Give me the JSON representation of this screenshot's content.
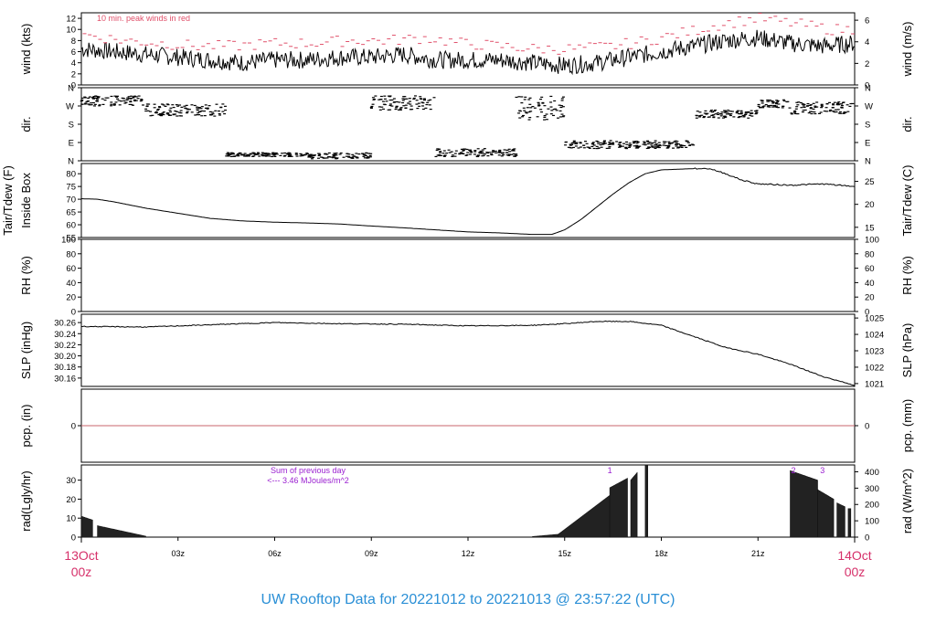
{
  "title": "UW Rooftop Data for 20221012  to  20221013 @ 23:57:22  (UTC)",
  "x_axis": {
    "start": {
      "line1": "13Oct",
      "line2": "00z"
    },
    "end": {
      "line1": "14Oct",
      "line2": "00z"
    },
    "ticks": [
      {
        "hour": 3,
        "label": "03z"
      },
      {
        "hour": 6,
        "label": "06z"
      },
      {
        "hour": 9,
        "label": "09z"
      },
      {
        "hour": 12,
        "label": "12z"
      },
      {
        "hour": 15,
        "label": "15z"
      },
      {
        "hour": 18,
        "label": "18z"
      },
      {
        "hour": 21,
        "label": "21z"
      }
    ]
  },
  "colors": {
    "title": "#2a8fd6",
    "date_labels": "#d6306a",
    "peak_winds": "#e0506a",
    "precip_line": "#c8646e",
    "rad_annotation": "#9a1fd0"
  },
  "chart_data": [
    {
      "id": "wind",
      "type": "line",
      "left_label": "wind (kts)",
      "right_label": "wind (m/s)",
      "left_ticks": [
        0,
        2,
        4,
        6,
        8,
        10,
        12
      ],
      "right_ticks": [
        0,
        2,
        4,
        6
      ],
      "ylim": [
        0,
        13
      ],
      "annotation": "10 min. peak winds in red",
      "series": [
        {
          "hours": [
            0,
            1,
            2,
            3,
            4,
            5,
            6,
            7,
            8,
            9,
            10,
            11,
            12,
            13,
            14,
            15,
            16,
            17,
            18,
            19,
            20,
            21,
            22,
            23,
            24
          ],
          "values": [
            6.5,
            6,
            5.5,
            5,
            4.5,
            4,
            4.5,
            4.5,
            5,
            5,
            5.5,
            4.5,
            4.5,
            4.5,
            4,
            3.5,
            4,
            5,
            6,
            7,
            8,
            8.5,
            7.5,
            7,
            7.5
          ]
        }
      ],
      "peak_hours": [
        0.2,
        1.3,
        2.5,
        3.6,
        4.7,
        5.9,
        7.1,
        8.3,
        9.5,
        10.7,
        11.8,
        13,
        14.1,
        15.3,
        16.5,
        17.6,
        18.8,
        19.9,
        21,
        22.2,
        23.3
      ],
      "peak_values": [
        9,
        8,
        7.5,
        7,
        7,
        7.5,
        7.5,
        8,
        8,
        8.5,
        7.5,
        7,
        6.5,
        6.5,
        7,
        8,
        9.5,
        11,
        12,
        11,
        10
      ]
    },
    {
      "id": "dir",
      "type": "scatter",
      "left_label": "dir.",
      "left_ticks": [
        "N",
        "W",
        "S",
        "E",
        "N"
      ],
      "right_ticks": [
        "N",
        "W",
        "S",
        "E",
        "N"
      ],
      "ylim": [
        0,
        360
      ],
      "segments": [
        {
          "h0": 0,
          "h1": 2,
          "from": 270,
          "to": 320
        },
        {
          "h0": 2,
          "h1": 4.5,
          "from": 220,
          "to": 280
        },
        {
          "h0": 4.5,
          "h1": 7,
          "from": 20,
          "to": 40
        },
        {
          "h0": 7,
          "h1": 9,
          "from": 10,
          "to": 40
        },
        {
          "h0": 9,
          "h1": 11,
          "from": 250,
          "to": 320
        },
        {
          "h0": 11,
          "h1": 13.5,
          "from": 20,
          "to": 60
        },
        {
          "h0": 13.5,
          "h1": 15,
          "from": 200,
          "to": 320
        },
        {
          "h0": 15,
          "h1": 19,
          "from": 60,
          "to": 100
        },
        {
          "h0": 19,
          "h1": 21,
          "from": 210,
          "to": 250
        },
        {
          "h0": 21,
          "h1": 22,
          "from": 260,
          "to": 300
        },
        {
          "h0": 22,
          "h1": 24,
          "from": 230,
          "to": 290
        }
      ]
    },
    {
      "id": "temp",
      "type": "line",
      "left_label_1": "Tair/Tdew (F)",
      "left_label_2": "Inside Box",
      "right_label": "Tair/Tdew (C)",
      "left_ticks": [
        55,
        60,
        65,
        70,
        75,
        80
      ],
      "right_ticks": [
        15,
        20,
        25
      ],
      "ylim": [
        55,
        84
      ],
      "series": [
        {
          "hours": [
            0,
            0.5,
            1,
            2,
            3,
            4,
            5,
            6,
            7,
            8,
            9,
            10,
            11,
            12,
            13,
            14,
            14.6,
            15,
            15.5,
            16,
            16.5,
            17,
            17.5,
            18,
            19,
            19.5,
            20,
            20.5,
            21,
            22,
            23,
            24
          ],
          "values": [
            70.2,
            70,
            69,
            66.5,
            64.5,
            62.5,
            61.5,
            61,
            60.7,
            60.3,
            59.5,
            58.8,
            58,
            57.2,
            56.8,
            56.2,
            56.2,
            58,
            62,
            67,
            72,
            76.5,
            80,
            81.5,
            82,
            82,
            80,
            77.5,
            76,
            75.5,
            76,
            75
          ]
        }
      ]
    },
    {
      "id": "rh",
      "type": "line",
      "left_label": "RH (%)",
      "right_label": "RH (%)",
      "left_ticks": [
        0,
        20,
        40,
        60,
        80,
        100
      ],
      "right_ticks": [
        0,
        20,
        40,
        60,
        80,
        100
      ],
      "ylim": [
        0,
        100
      ],
      "series": []
    },
    {
      "id": "slp",
      "type": "line",
      "left_label": "SLP (inHg)",
      "right_label": "SLP (hPa)",
      "left_ticks": [
        30.16,
        30.18,
        30.2,
        30.22,
        30.24,
        30.26
      ],
      "right_ticks": [
        1021,
        1022,
        1023,
        1024,
        1025
      ],
      "ylim": [
        30.145,
        30.275
      ],
      "series": [
        {
          "hours": [
            0,
            2,
            4,
            6,
            8,
            10,
            12,
            14,
            15,
            16,
            17,
            18,
            19,
            20,
            21,
            22,
            23,
            24
          ],
          "values": [
            30.253,
            30.252,
            30.256,
            30.26,
            30.258,
            30.257,
            30.254,
            30.255,
            30.258,
            30.262,
            30.262,
            30.255,
            30.235,
            30.215,
            30.203,
            30.185,
            30.163,
            30.147
          ]
        }
      ]
    },
    {
      "id": "pcp",
      "type": "line",
      "left_label": "pcp. (in)",
      "right_label": "pcp. (mm)",
      "left_ticks": [
        0
      ],
      "right_ticks": [
        0
      ],
      "ylim": [
        -1,
        1
      ],
      "series": [
        {
          "hours": [
            0,
            24
          ],
          "values": [
            0,
            0
          ]
        }
      ]
    },
    {
      "id": "rad",
      "type": "area",
      "left_label": "rad(Lgly/hr)",
      "right_label": "rad (W/m^2)",
      "left_ticks": [
        0,
        10,
        20,
        30
      ],
      "right_ticks": [
        0,
        100,
        200,
        300,
        400
      ],
      "ylim": [
        0,
        38
      ],
      "annotation_line1": "Sum of previous day",
      "annotation_line2": "<--- 3.46 MJoules/m^2",
      "markers": [
        {
          "hour": 16.4,
          "label": "1"
        },
        {
          "hour": 22.1,
          "label": "2"
        },
        {
          "hour": 23.0,
          "label": "3"
        }
      ],
      "bars": [
        {
          "h0": 0,
          "h1": 0.35,
          "from": 11,
          "to": 9
        },
        {
          "h0": 0.5,
          "h1": 2.0,
          "from": 6,
          "to": 0.5
        },
        {
          "h0": 14.0,
          "h1": 14.8,
          "from": 0.3,
          "to": 1.5
        },
        {
          "h0": 14.8,
          "h1": 16.4,
          "from": 1.5,
          "to": 22
        },
        {
          "h0": 16.4,
          "h1": 16.95,
          "from": 26,
          "to": 31
        },
        {
          "h0": 17.05,
          "h1": 17.25,
          "from": 30,
          "to": 34
        },
        {
          "h0": 17.5,
          "h1": 17.58,
          "from": 38,
          "to": 38
        },
        {
          "h0": 22.0,
          "h1": 22.85,
          "from": 35,
          "to": 30
        },
        {
          "h0": 22.85,
          "h1": 23.35,
          "from": 25,
          "to": 20
        },
        {
          "h0": 23.45,
          "h1": 23.7,
          "from": 18,
          "to": 16
        },
        {
          "h0": 23.8,
          "h1": 23.88,
          "from": 15,
          "to": 15
        }
      ]
    }
  ]
}
